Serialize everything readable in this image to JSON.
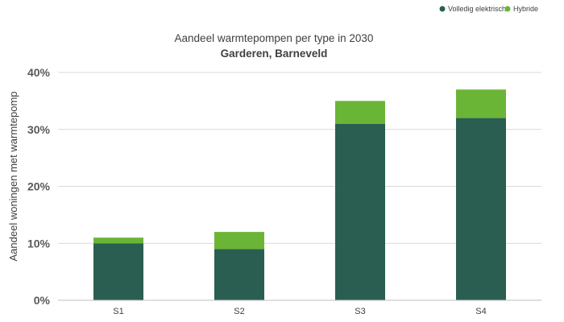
{
  "chart_data": {
    "type": "bar",
    "stacked": true,
    "title": "Aandeel warmtepompen per type in 2030",
    "subtitle": "Garderen, Barneveld",
    "xlabel": "",
    "ylabel": "Aandeel woningen met warmtepomp",
    "categories": [
      "S1",
      "S2",
      "S3",
      "S4"
    ],
    "ylim": [
      0,
      40
    ],
    "yticks": [
      "0%",
      "10%",
      "20%",
      "30%",
      "40%"
    ],
    "grid": true,
    "legend_position": "top-right",
    "series": [
      {
        "name": "Volledig elektrisch",
        "values": [
          10,
          9,
          31,
          32
        ],
        "color": "#2a5e50"
      },
      {
        "name": "Hybride",
        "values": [
          1,
          3,
          4,
          5
        ],
        "color": "#6bb536"
      }
    ]
  }
}
